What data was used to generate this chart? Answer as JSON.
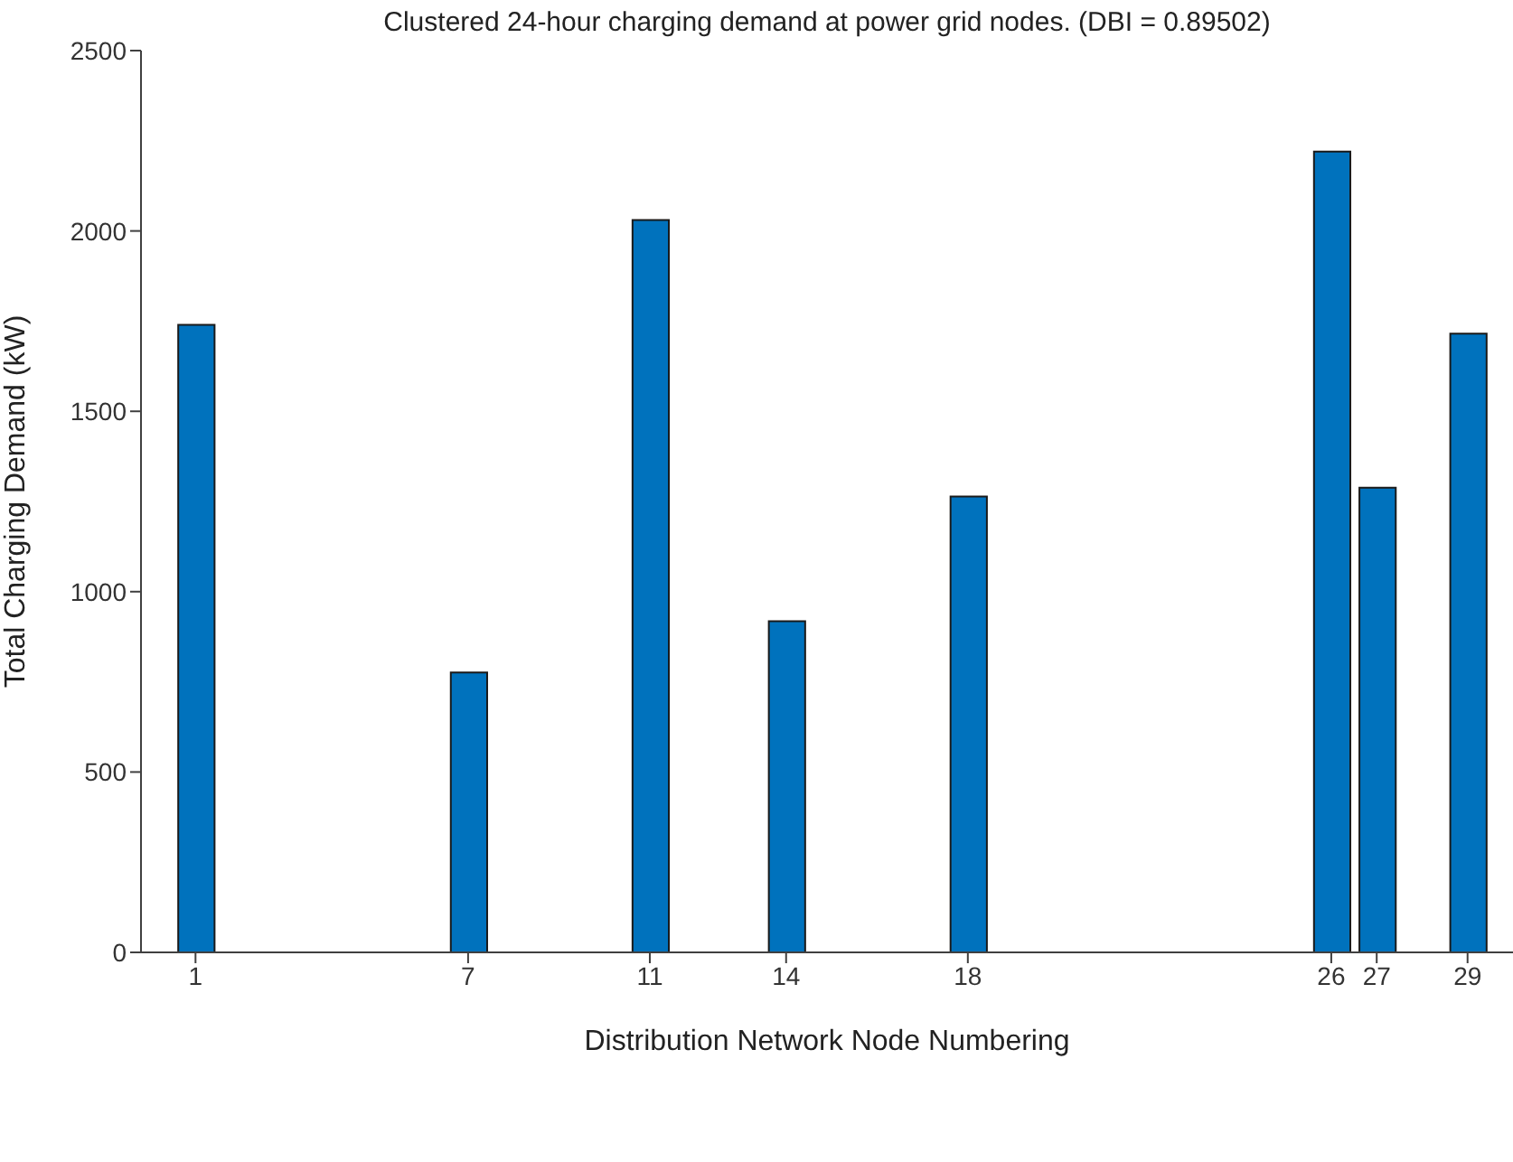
{
  "chart_data": {
    "type": "bar",
    "title": "Clustered 24-hour charging demand at power grid nodes. (DBI = 0.89502)",
    "xlabel": "Distribution Network Node Numbering",
    "ylabel": "Total Charging Demand (kW)",
    "x": [
      1,
      7,
      11,
      14,
      18,
      26,
      27,
      29
    ],
    "values": [
      1740,
      776,
      2030,
      918,
      1264,
      2220,
      1288,
      1715
    ],
    "color": "#0072bd",
    "xlim": [
      -0.2,
      30
    ],
    "xticks": [
      1,
      7,
      11,
      14,
      18,
      26,
      27,
      29
    ],
    "ylim": [
      0,
      2500
    ],
    "yticks": [
      0,
      500,
      1000,
      1500,
      2000,
      2500
    ]
  }
}
